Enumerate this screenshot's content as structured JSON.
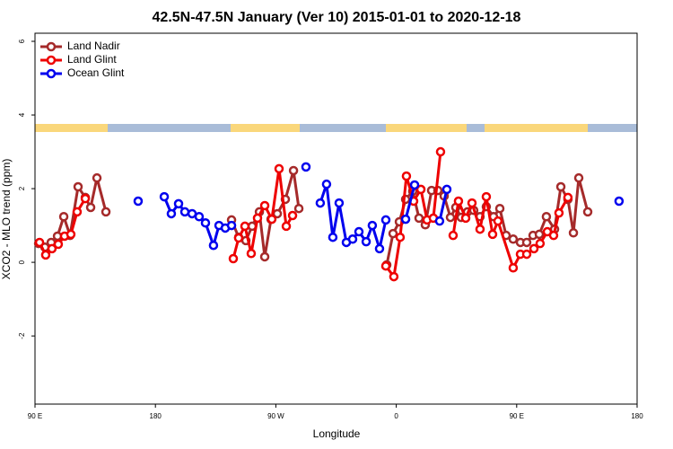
{
  "chart_data": {
    "type": "line",
    "title": "42.5N-47.5N January (Ver 10)   2015-01-01 to 2020-12-18",
    "x_label": "Longitude",
    "y_label": "XCO2 - MLO trend (ppm)",
    "xlim": [
      90,
      540
    ],
    "xticks": [
      {
        "value": 90,
        "label": "90 E"
      },
      180,
      {
        "value": 270,
        "label": "90 W"
      },
      {
        "value": 360,
        "label": "0"
      },
      {
        "value": 450,
        "label": "90 E"
      },
      180
    ],
    "ylim": [
      -3.85,
      6.22
    ],
    "yticks": [
      -2,
      0,
      2,
      4,
      6
    ],
    "legend": "top-left",
    "series": [
      {
        "name": "Land Nadir",
        "color": "#a52a2a",
        "x": [
          92.7,
          97.4,
          102.1,
          106.8,
          111.5,
          116.2,
          122.2,
          127.6,
          131.6,
          136.3,
          143.0,
          null,
          236.9,
          242.2,
          247.6,
          252.3,
          257.7,
          261.7,
          266.4,
          271.1,
          277.1,
          283.2,
          287.2,
          null,
          352.9,
          357.6,
          362.3,
          367.0,
          372.3,
          377.0,
          381.7,
          386.4,
          391.1,
          395.8,
          400.5,
          404.5,
          408.5,
          413.2,
          417.9,
          422.6,
          427.3,
          432.7,
          437.4,
          442.1,
          447.4,
          452.8,
          457.5,
          462.2,
          466.9,
          472.2,
          478.3,
          483.0,
          488.3,
          492.4,
          496.4,
          503.1
        ],
        "values": [
          0.51,
          0.41,
          0.54,
          0.71,
          1.24,
          0.73,
          2.05,
          1.76,
          1.49,
          2.29,
          1.37,
          null,
          1.15,
          0.68,
          0.59,
          0.98,
          1.37,
          0.15,
          1.17,
          1.32,
          1.71,
          2.49,
          1.46,
          null,
          -0.07,
          0.78,
          1.1,
          1.71,
          1.93,
          1.2,
          1.02,
          1.95,
          1.95,
          1.8,
          1.22,
          1.49,
          1.22,
          1.37,
          1.41,
          1.24,
          1.51,
          1.24,
          1.46,
          0.73,
          0.63,
          0.54,
          0.54,
          0.73,
          0.76,
          1.24,
          0.9,
          2.05,
          1.71,
          0.8,
          2.29,
          1.37
        ]
      },
      {
        "name": "Land Glint",
        "color": "#ee0000",
        "x": [
          93.4,
          98.0,
          102.7,
          107.4,
          112.1,
          116.8,
          121.5,
          127.6,
          null,
          238.2,
          242.2,
          246.9,
          251.6,
          256.3,
          261.7,
          267.0,
          272.4,
          277.8,
          282.5,
          null,
          352.2,
          358.2,
          362.9,
          367.6,
          373.0,
          378.4,
          383.0,
          387.7,
          393.1,
          null,
          402.5,
          406.5,
          411.9,
          416.6,
          422.6,
          427.3,
          432.0,
          436.0,
          447.4,
          452.8,
          457.5,
          462.9,
          467.5,
          472.9,
          477.6,
          481.6,
          488.3
        ],
        "values": [
          0.54,
          0.2,
          0.37,
          0.49,
          0.71,
          0.76,
          1.37,
          1.73,
          null,
          0.1,
          0.66,
          0.98,
          0.24,
          1.2,
          1.54,
          1.17,
          2.54,
          0.98,
          1.27,
          null,
          -0.1,
          -0.39,
          0.68,
          2.34,
          1.66,
          1.98,
          1.15,
          1.2,
          3.0,
          null,
          0.73,
          1.66,
          1.2,
          1.61,
          0.9,
          1.78,
          0.76,
          1.12,
          -0.15,
          0.22,
          0.22,
          0.37,
          0.51,
          0.83,
          0.73,
          1.34,
          1.76
        ]
      },
      {
        "name": "Ocean Glint",
        "color": "#0000ee",
        "x": [
          167.1,
          null,
          186.6,
          191.9,
          197.3,
          202.0,
          207.4,
          212.7,
          217.4,
          223.4,
          227.5,
          232.2,
          236.9,
          null,
          292.5,
          null,
          303.2,
          307.9,
          312.6,
          317.3,
          322.7,
          327.4,
          332.1,
          337.5,
          342.1,
          347.5,
          352.2,
          null,
          367.0,
          373.7,
          null,
          392.4,
          397.8,
          null,
          526.5
        ],
        "values": [
          1.66,
          null,
          1.78,
          1.32,
          1.59,
          1.37,
          1.32,
          1.24,
          1.07,
          0.46,
          1.0,
          0.93,
          1.0,
          null,
          2.59,
          null,
          1.61,
          2.12,
          0.68,
          1.61,
          0.54,
          0.63,
          0.83,
          0.56,
          1.0,
          0.37,
          1.15,
          null,
          1.17,
          2.1,
          null,
          1.12,
          1.98,
          null,
          1.66
        ]
      }
    ]
  }
}
